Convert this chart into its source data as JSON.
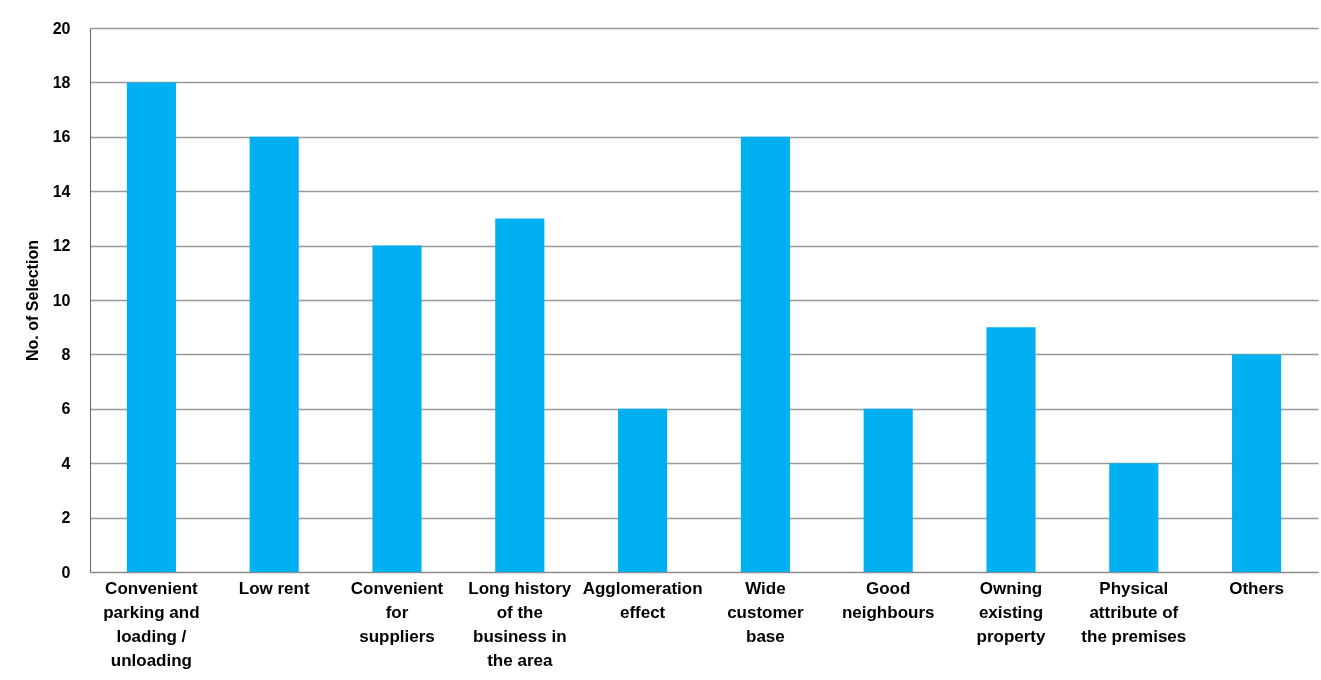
{
  "chart_data": {
    "type": "bar",
    "ylabel": "No. of Selection",
    "categories": [
      "Convenient parking and loading / unloading",
      "Low rent",
      "Convenient for suppliers",
      "Long history of the business in the area",
      "Agglomeration effect",
      "Wide customer base",
      "Good neighbours",
      "Owning existing property",
      "Physical attribute of the premises",
      "Others"
    ],
    "values": [
      18,
      16,
      12,
      13,
      6,
      16,
      6,
      9,
      4,
      8
    ],
    "color": "#00b0f0",
    "ylim": [
      0,
      20
    ],
    "yticks": [
      0,
      2,
      4,
      6,
      8,
      10,
      12,
      14,
      16,
      18,
      20
    ],
    "grid": "y"
  }
}
